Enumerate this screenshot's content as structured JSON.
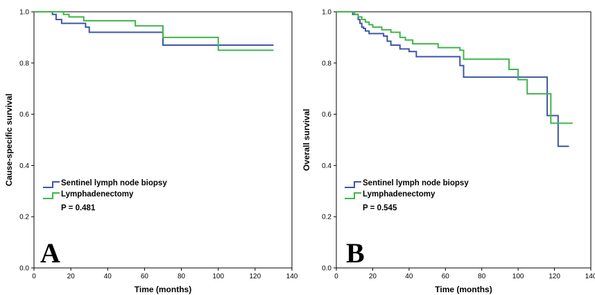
{
  "colors": {
    "sentinel": "#3f56a6",
    "lymph": "#3fb54a"
  },
  "legend_labels": [
    "Sentinel lymph node biopsy",
    "Lymphadenectomy"
  ],
  "chart_data": [
    {
      "type": "line",
      "panel_letter": "A",
      "title": "",
      "xlabel": "Time (months)",
      "ylabel": "Cause-specific survival",
      "xlim": [
        0,
        140
      ],
      "ylim": [
        0,
        1.0
      ],
      "xticks": [
        "0",
        "20",
        "40",
        "60",
        "80",
        "100",
        "120",
        "140"
      ],
      "yticks": [
        "0.0",
        "0.2",
        "0.4",
        "0.6",
        "0.8",
        "1.0"
      ],
      "legend_position": "lower-left",
      "p_value": "P = 0.481",
      "series": [
        {
          "name": "Sentinel lymph node biopsy",
          "color_key": "sentinel",
          "x": [
            0,
            10,
            12,
            15,
            28,
            30,
            70,
            130
          ],
          "y": [
            1.0,
            0.99,
            0.97,
            0.955,
            0.94,
            0.92,
            0.87,
            0.87
          ]
        },
        {
          "name": "Lymphadenectomy",
          "color_key": "lymph",
          "x": [
            0,
            16,
            19,
            27,
            55,
            70,
            100,
            130
          ],
          "y": [
            1.0,
            0.99,
            0.98,
            0.965,
            0.945,
            0.9,
            0.85,
            0.85
          ]
        }
      ]
    },
    {
      "type": "line",
      "panel_letter": "B",
      "title": "",
      "xlabel": "Time (months)",
      "ylabel": "Overall survival",
      "xlim": [
        0,
        140
      ],
      "ylim": [
        0,
        1.0
      ],
      "xticks": [
        "0",
        "20",
        "40",
        "60",
        "80",
        "100",
        "120",
        "140"
      ],
      "yticks": [
        "0.0",
        "0.2",
        "0.4",
        "0.6",
        "0.8",
        "1.0"
      ],
      "legend_position": "lower-left",
      "p_value": "P = 0.545",
      "series": [
        {
          "name": "Sentinel lymph node biopsy",
          "color_key": "sentinel",
          "x": [
            0,
            9,
            12,
            13,
            14,
            15,
            16,
            18,
            26,
            28,
            30,
            35,
            40,
            44,
            68,
            70,
            115,
            116,
            122,
            128
          ],
          "y": [
            1.0,
            0.99,
            0.97,
            0.955,
            0.94,
            0.935,
            0.925,
            0.915,
            0.905,
            0.885,
            0.87,
            0.855,
            0.845,
            0.825,
            0.79,
            0.745,
            0.745,
            0.595,
            0.475,
            0.475
          ]
        },
        {
          "name": "Lymphadenectomy",
          "color_key": "lymph",
          "x": [
            0,
            10,
            12,
            14,
            16,
            18,
            20,
            25,
            30,
            35,
            38,
            42,
            56,
            68,
            70,
            95,
            100,
            105,
            115,
            118,
            130
          ],
          "y": [
            1.0,
            0.99,
            0.98,
            0.97,
            0.96,
            0.95,
            0.94,
            0.93,
            0.92,
            0.9,
            0.89,
            0.875,
            0.86,
            0.85,
            0.815,
            0.775,
            0.735,
            0.68,
            0.68,
            0.565,
            0.565
          ]
        }
      ]
    }
  ]
}
